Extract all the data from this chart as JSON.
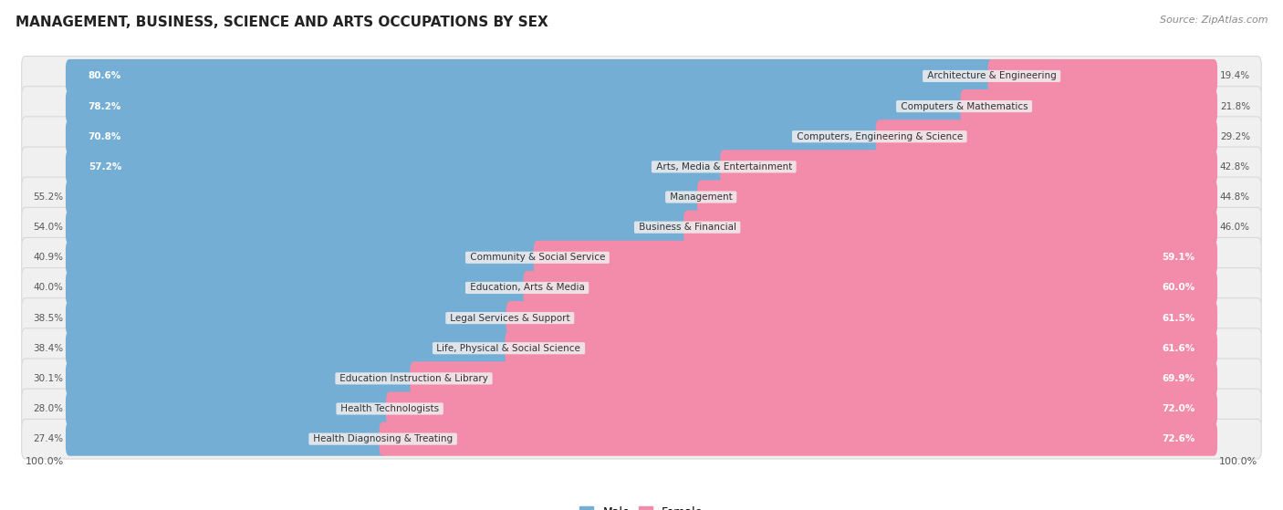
{
  "title": "MANAGEMENT, BUSINESS, SCIENCE AND ARTS OCCUPATIONS BY SEX",
  "source": "Source: ZipAtlas.com",
  "categories": [
    "Architecture & Engineering",
    "Computers & Mathematics",
    "Computers, Engineering & Science",
    "Arts, Media & Entertainment",
    "Management",
    "Business & Financial",
    "Community & Social Service",
    "Education, Arts & Media",
    "Legal Services & Support",
    "Life, Physical & Social Science",
    "Education Instruction & Library",
    "Health Technologists",
    "Health Diagnosing & Treating"
  ],
  "male_pct": [
    80.6,
    78.2,
    70.8,
    57.2,
    55.2,
    54.0,
    40.9,
    40.0,
    38.5,
    38.4,
    30.1,
    28.0,
    27.4
  ],
  "female_pct": [
    19.4,
    21.8,
    29.2,
    42.8,
    44.8,
    46.0,
    59.1,
    60.0,
    61.5,
    61.6,
    69.9,
    72.0,
    72.6
  ],
  "male_color": "#74aed4",
  "female_color": "#f28caa",
  "row_bg_color": "#f0f0f0",
  "row_border_color": "#d8d8d8",
  "title_fontsize": 11,
  "source_fontsize": 8,
  "label_fontsize": 7.5,
  "bar_label_fontsize": 7.5,
  "white_label_threshold_male": 57.0,
  "white_label_threshold_female": 59.0
}
